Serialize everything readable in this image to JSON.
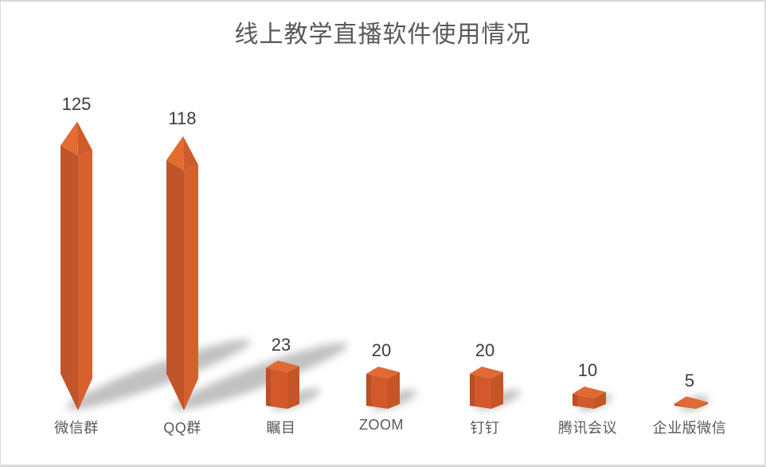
{
  "chart_data": {
    "type": "bar",
    "title": "线上教学直播软件使用情况",
    "categories": [
      "微信群",
      "QQ群",
      "瞩目",
      "ZOOM",
      "钉钉",
      "腾讯会议",
      "企业版微信"
    ],
    "values": [
      125,
      118,
      23,
      20,
      20,
      10,
      5
    ],
    "xlabel": "",
    "ylabel": "",
    "legend": false,
    "grid": false,
    "axes_visible": false,
    "data_labels_visible": true,
    "bar_style": "3d-orange-columns, tall bars pointed top and bottom, short bars cuboid boxes, soft diagonal floor shadows"
  },
  "style": {
    "background": "#FFFFFF",
    "frame_border_color": "#D9D9D9",
    "title_color": "#595959",
    "value_label_color": "#3D3D3D",
    "category_label_color": "#595959",
    "bar_faces": {
      "point_top_light": "#E36C31",
      "point_top_dark": "#CF5B2A",
      "point_left": "#C0552A",
      "point_right": "#D7612E",
      "box_top": "#E06A33",
      "box_front": "#D3592C",
      "box_left_strip": "#B94F26",
      "box_right_side": "#C55426"
    },
    "shadow_color": "rgba(118,118,118,0.45)"
  }
}
